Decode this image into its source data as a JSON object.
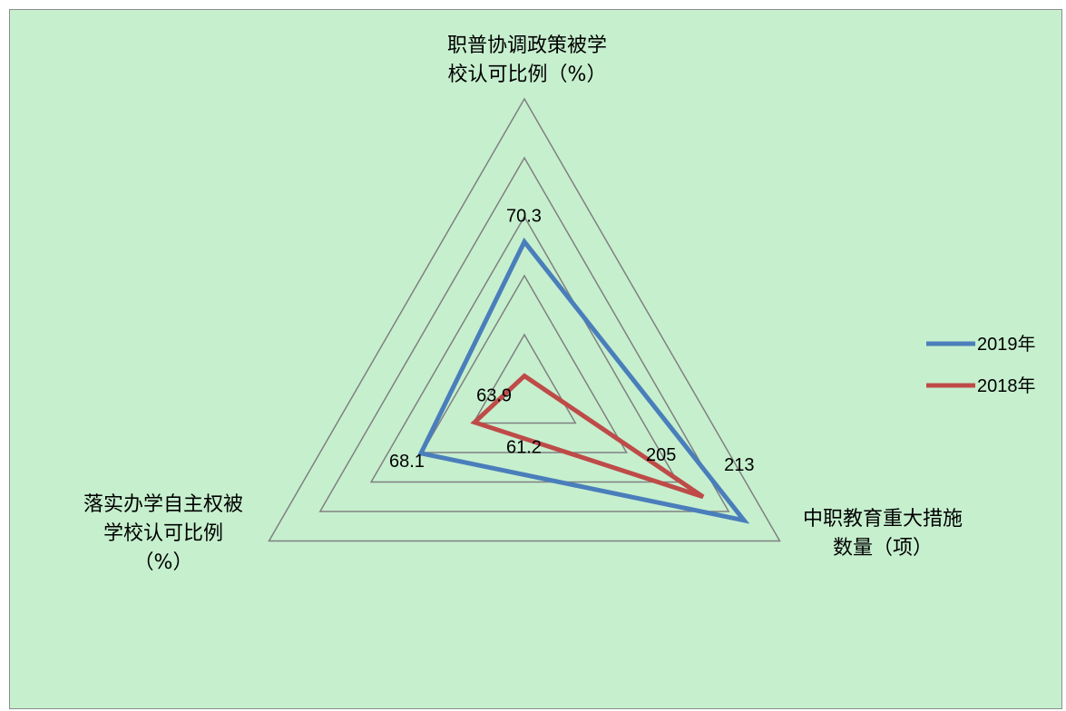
{
  "chart_data": {
    "type": "radar",
    "title": "",
    "axes": [
      {
        "label_lines": [
          "职普协调政策被学",
          "校认可比例（%）"
        ]
      },
      {
        "label_lines": [
          "中职教育重大措施",
          "数量（项）"
        ]
      },
      {
        "label_lines": [
          "落实办学自主权被",
          "学校认可比例",
          "（%）"
        ]
      }
    ],
    "grid_rings": 5,
    "grid_color": "#808080",
    "series": [
      {
        "name": "2019年",
        "color": "#4a7ebb",
        "values": [
          70.3,
          213,
          68.1
        ]
      },
      {
        "name": "2018年",
        "color": "#be4b48",
        "values": [
          61.2,
          205,
          63.9
        ]
      }
    ],
    "legend_position": "right"
  }
}
